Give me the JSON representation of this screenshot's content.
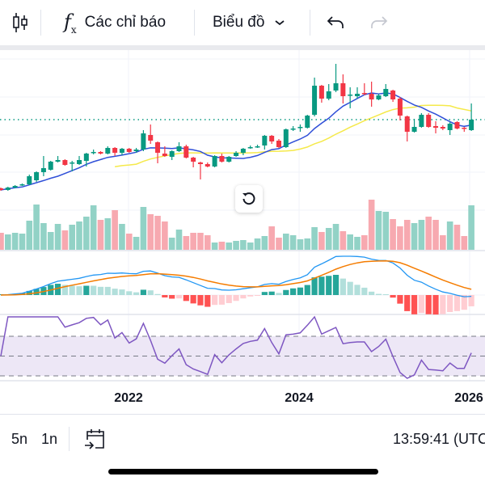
{
  "toolbar": {
    "chart_type_icon": "candlestick-icon",
    "indicators_icon": "fx-icon",
    "indicators_label": "Các chỉ báo",
    "chart_label": "Biểu đồ",
    "undo_icon": "undo-icon",
    "redo_icon": "redo-icon"
  },
  "x_axis": {
    "labels": [
      "2022",
      "2024",
      "2026"
    ]
  },
  "bottom": {
    "range_5y": "5n",
    "range_1y": "1n",
    "goto_date_icon": "calendar-arrow-icon",
    "clock": "13:59:41 (UTC"
  },
  "colors": {
    "up": "#089981",
    "down": "#f23645",
    "up_volume": "#92d2c6",
    "down_volume": "#f7a9b0",
    "ma_fast": "#2f4fd8",
    "ma_slow": "#f5e94a",
    "macd": "#2196f3",
    "signal": "#f57c00",
    "rsi": "#7e57c2",
    "rsi_band": "#ede7f6"
  },
  "chart_data": {
    "type": "candlestick",
    "interval": "monthly",
    "x_start": "2020-08",
    "x_ticks": [
      "2022",
      "2024",
      "2026"
    ],
    "ohlc": [
      [
        67,
        68,
        64,
        65
      ],
      [
        65,
        69,
        64,
        68
      ],
      [
        68,
        71,
        67,
        70
      ],
      [
        71,
        73,
        70,
        72
      ],
      [
        72,
        84,
        71,
        82
      ],
      [
        77,
        88,
        75,
        87
      ],
      [
        87,
        107,
        82,
        92
      ],
      [
        90,
        101,
        89,
        100
      ],
      [
        100,
        107,
        99,
        102
      ],
      [
        102,
        103,
        95,
        96
      ],
      [
        98,
        101,
        88,
        99
      ],
      [
        97,
        107,
        96,
        102
      ],
      [
        101,
        111,
        94,
        110
      ],
      [
        111,
        115,
        109,
        112
      ],
      [
        112,
        113,
        109,
        110
      ],
      [
        110,
        119,
        109,
        117
      ],
      [
        117,
        118,
        107,
        111
      ],
      [
        111,
        117,
        108,
        116
      ],
      [
        116,
        117,
        111,
        112
      ],
      [
        113,
        117,
        111,
        115
      ],
      [
        115,
        139,
        113,
        135
      ],
      [
        133,
        146,
        122,
        126
      ],
      [
        124,
        125,
        98,
        111
      ],
      [
        110,
        119,
        106,
        107
      ],
      [
        106,
        114,
        102,
        113
      ],
      [
        113,
        124,
        112,
        119
      ],
      [
        119,
        121,
        104,
        105
      ],
      [
        105,
        106,
        93,
        100
      ],
      [
        99,
        100,
        78,
        97
      ],
      [
        97,
        99,
        93,
        94
      ],
      [
        94,
        108,
        93,
        107
      ],
      [
        107,
        110,
        99,
        100
      ],
      [
        100,
        107,
        99,
        106
      ],
      [
        107,
        113,
        106,
        111
      ],
      [
        111,
        117,
        108,
        116
      ],
      [
        117,
        120,
        116,
        118
      ],
      [
        118,
        121,
        117,
        119
      ],
      [
        120,
        133,
        115,
        132
      ],
      [
        132,
        133,
        122,
        125
      ],
      [
        126,
        128,
        117,
        118
      ],
      [
        118,
        141,
        117,
        140
      ],
      [
        140,
        144,
        138,
        141
      ],
      [
        142,
        146,
        137,
        143
      ],
      [
        142,
        158,
        141,
        157
      ],
      [
        158,
        204,
        156,
        194
      ],
      [
        194,
        195,
        173,
        178
      ],
      [
        178,
        196,
        176,
        187
      ],
      [
        188,
        221,
        186,
        197
      ],
      [
        197,
        208,
        172,
        181
      ],
      [
        182,
        192,
        166,
        183
      ],
      [
        181,
        192,
        178,
        184
      ],
      [
        185,
        197,
        182,
        184
      ],
      [
        184,
        199,
        168,
        177
      ],
      [
        177,
        184,
        176,
        182
      ],
      [
        181,
        196,
        180,
        190
      ],
      [
        188,
        189,
        174,
        177
      ],
      [
        178,
        180,
        151,
        157
      ],
      [
        156,
        157,
        125,
        137
      ],
      [
        137,
        153,
        136,
        143
      ],
      [
        143,
        160,
        142,
        158
      ],
      [
        158,
        160,
        142,
        143
      ],
      [
        144,
        150,
        135,
        142
      ],
      [
        143,
        145,
        139,
        141
      ],
      [
        139,
        149,
        133,
        147
      ],
      [
        149,
        150,
        140,
        141
      ],
      [
        142,
        143,
        137,
        141
      ],
      [
        139,
        172,
        138,
        152
      ]
    ],
    "volume": [
      21,
      19,
      21,
      20,
      36,
      56,
      33,
      22,
      32,
      24,
      31,
      35,
      41,
      55,
      37,
      39,
      49,
      32,
      20,
      16,
      53,
      44,
      42,
      35,
      15,
      25,
      17,
      21,
      21,
      18,
      9,
      10,
      9,
      11,
      12,
      9,
      14,
      17,
      29,
      15,
      20,
      18,
      13,
      14,
      28,
      22,
      27,
      32,
      23,
      19,
      16,
      18,
      62,
      48,
      47,
      38,
      29,
      37,
      33,
      37,
      41,
      37,
      18,
      35,
      31,
      17,
      55
    ],
    "last_price_line": 152,
    "indicators": [
      "MA",
      "MA",
      "Volume",
      "MACD",
      "RSI"
    ]
  }
}
